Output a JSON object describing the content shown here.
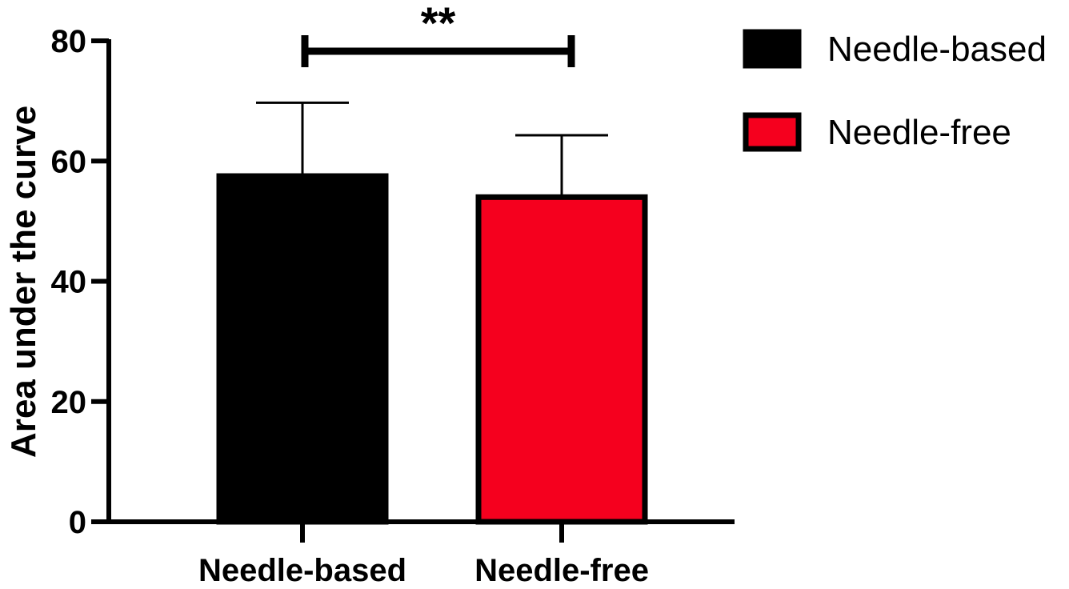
{
  "chart_data": {
    "type": "bar",
    "categories": [
      "Needle-based",
      "Needle-free"
    ],
    "values": [
      57.5,
      54
    ],
    "errors": [
      12.2,
      10.3
    ],
    "colors": [
      "#000000",
      "#f5001e"
    ],
    "title": "",
    "xlabel": "",
    "ylabel": "Area under the curve",
    "ylim": [
      0,
      80
    ],
    "yticks": [
      0,
      20,
      40,
      60,
      80
    ],
    "legend": {
      "placement": "top-right",
      "entries": [
        "Needle-based",
        "Needle-free"
      ]
    },
    "significance": {
      "label": "**",
      "between": [
        0,
        1
      ]
    },
    "grid": false
  }
}
